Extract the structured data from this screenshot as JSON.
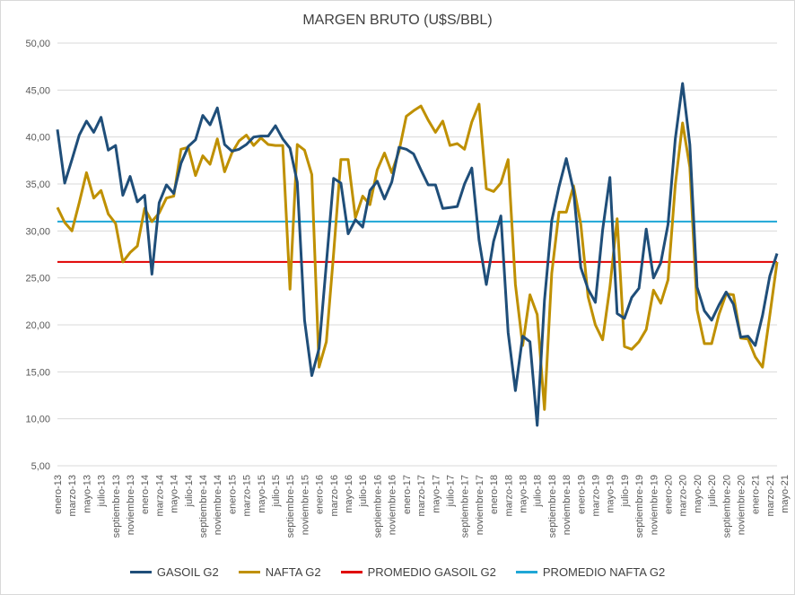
{
  "chart_data": {
    "type": "line",
    "title": "MARGEN BRUTO (U$S/BBL)",
    "xlabel": "",
    "ylabel": "",
    "ylim": [
      5,
      50
    ],
    "yticks": [
      "5,00",
      "10,00",
      "15,00",
      "20,00",
      "25,00",
      "30,00",
      "35,00",
      "40,00",
      "45,00",
      "50,00"
    ],
    "grid": "horizontal",
    "legend_position": "bottom",
    "x_tick_labels": [
      "enero-13",
      "marzo-13",
      "mayo-13",
      "julio-13",
      "septiembre-13",
      "noviembre-13",
      "enero-14",
      "marzo-14",
      "mayo-14",
      "julio-14",
      "septiembre-14",
      "noviembre-14",
      "enero-15",
      "marzo-15",
      "mayo-15",
      "julio-15",
      "septiembre-15",
      "noviembre-15",
      "enero-16",
      "marzo-16",
      "mayo-16",
      "julio-16",
      "septiembre-16",
      "noviembre-16",
      "enero-17",
      "marzo-17",
      "mayo-17",
      "julio-17",
      "septiembre-17",
      "noviembre-17",
      "enero-18",
      "marzo-18",
      "mayo-18",
      "julio-18",
      "septiembre-18",
      "noviembre-18",
      "enero-19",
      "marzo-19",
      "mayo-19",
      "julio-19",
      "septiembre-19",
      "noviembre-19",
      "enero-20",
      "marzo-20",
      "mayo-20",
      "julio-20",
      "septiembre-20",
      "noviembre-20",
      "enero-21",
      "marzo-21",
      "mayo-21"
    ],
    "series": [
      {
        "name": "GASOIL G2",
        "color": "#1f4e79",
        "values": [
          40.8,
          35.1,
          37.6,
          40.2,
          41.7,
          40.5,
          42.1,
          38.6,
          39.1,
          33.8,
          35.8,
          33.1,
          33.8,
          25.4,
          33.0,
          34.9,
          34.0,
          37.2,
          39.0,
          39.7,
          42.3,
          41.3,
          43.1,
          39.2,
          38.5,
          38.7,
          39.2,
          40.0,
          40.1,
          40.1,
          41.2,
          39.8,
          38.8,
          35.2,
          20.5,
          14.6,
          17.5,
          26.5,
          35.6,
          35.1,
          29.7,
          31.2,
          30.4,
          34.3,
          35.3,
          33.4,
          35.2,
          38.9,
          38.7,
          38.2,
          36.5,
          34.9,
          34.9,
          32.4,
          32.5,
          32.6,
          35.0,
          36.7,
          29.0,
          24.3,
          28.9,
          31.6,
          19.2,
          13.0,
          18.8,
          18.2,
          9.3,
          22.6,
          31.1,
          34.7,
          37.7,
          34.3,
          26.1,
          23.8,
          22.4,
          30.1,
          35.7,
          21.2,
          20.7,
          22.9,
          23.9,
          30.2,
          25.0,
          26.6,
          30.7,
          39.8,
          45.7,
          39.2,
          24.0,
          21.5,
          20.5,
          22.1,
          23.5,
          22.2,
          18.7,
          18.8,
          17.8,
          21.0,
          25.2,
          27.6
        ]
      },
      {
        "name": "NAFTA G2",
        "color": "#bf9000",
        "values": [
          32.5,
          30.9,
          30.0,
          33.0,
          36.2,
          33.5,
          34.3,
          31.8,
          30.8,
          26.7,
          27.7,
          28.4,
          32.4,
          31.0,
          31.9,
          33.5,
          33.7,
          38.7,
          38.9,
          35.9,
          38.0,
          37.1,
          39.8,
          36.3,
          38.3,
          39.6,
          40.2,
          39.1,
          39.9,
          39.2,
          39.1,
          39.1,
          23.8,
          39.2,
          38.6,
          36.0,
          15.5,
          18.2,
          27.6,
          37.6,
          37.6,
          31.4,
          33.7,
          32.8,
          36.5,
          38.3,
          36.2,
          38.5,
          42.2,
          42.8,
          43.3,
          41.8,
          40.5,
          41.7,
          39.1,
          39.3,
          38.7,
          41.6,
          43.5,
          34.5,
          34.2,
          35.1,
          37.6,
          24.3,
          17.8,
          23.2,
          21.1,
          11.0,
          25.5,
          32.0,
          32.0,
          34.8,
          30.7,
          23.0,
          20.0,
          18.4,
          24.0,
          31.3,
          17.7,
          17.4,
          18.2,
          19.5,
          23.7,
          22.3,
          24.8,
          34.9,
          41.5,
          36.8,
          21.6,
          18.0,
          18.0,
          21.1,
          23.3,
          23.2,
          18.6,
          18.5,
          16.6,
          15.5,
          21.0,
          26.7
        ]
      },
      {
        "name": "PROMEDIO GASOIL G2",
        "color": "#e00000",
        "values": [
          26.7
        ]
      },
      {
        "name": "PROMEDIO NAFTA G2",
        "color": "#1fa7d6",
        "values": [
          31.0
        ]
      }
    ]
  }
}
